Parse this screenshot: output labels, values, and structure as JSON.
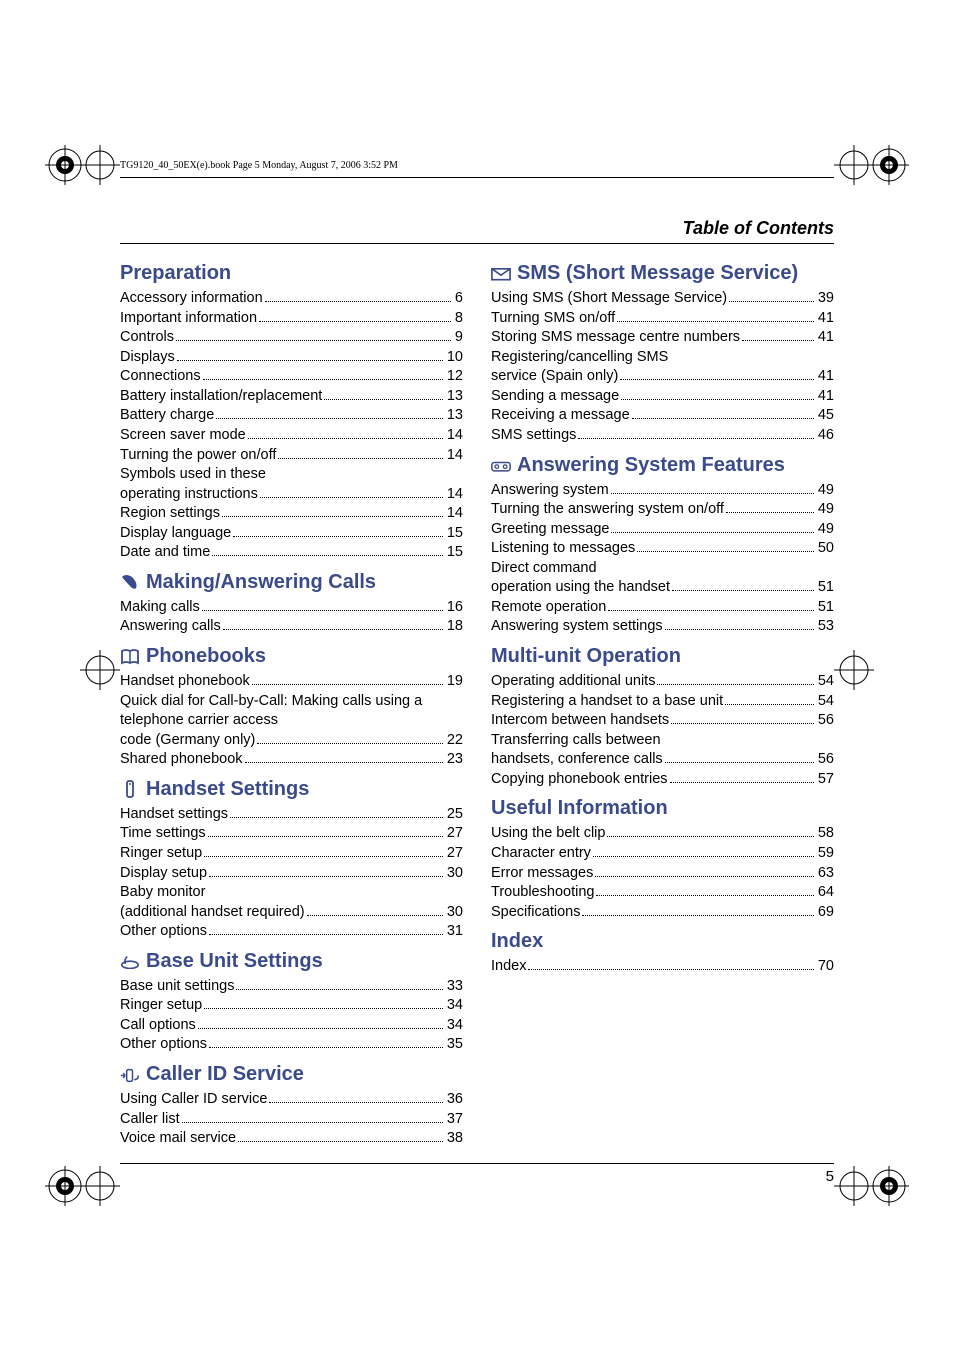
{
  "header_line": "TG9120_40_50EX(e).book  Page 5  Monday, August 7, 2006  3:52 PM",
  "running_head": "Table of Contents",
  "page_number": "5",
  "colors": {
    "heading": "#3a4a8a",
    "text": "#000000",
    "background": "#ffffff"
  },
  "left_sections": [
    {
      "title": "Preparation",
      "icon": null,
      "entries": [
        {
          "label": "Accessory information",
          "page": "6"
        },
        {
          "label": "Important information",
          "page": "8"
        },
        {
          "label": "Controls",
          "page": "9"
        },
        {
          "label": "Displays",
          "page": "10"
        },
        {
          "label": "Connections",
          "page": "12"
        },
        {
          "label": "Battery installation/replacement",
          "page": "13"
        },
        {
          "label": "Battery charge",
          "page": "13"
        },
        {
          "label": "Screen saver mode",
          "page": "14"
        },
        {
          "label": "Turning the power on/off",
          "page": "14"
        },
        {
          "label": "Symbols used in these operating instructions",
          "page": "14"
        },
        {
          "label": "Region settings",
          "page": "14"
        },
        {
          "label": "Display language",
          "page": "15"
        },
        {
          "label": "Date and time",
          "page": "15"
        }
      ]
    },
    {
      "title": "Making/Answering Calls",
      "icon": "phone",
      "entries": [
        {
          "label": "Making calls",
          "page": "16"
        },
        {
          "label": "Answering calls",
          "page": "18"
        }
      ]
    },
    {
      "title": "Phonebooks",
      "icon": "book",
      "entries": [
        {
          "label": "Handset phonebook",
          "page": "19"
        },
        {
          "label": "Quick dial for Call-by-Call: Making calls using a telephone carrier access code (Germany only)",
          "page": "22"
        },
        {
          "label": "Shared phonebook",
          "page": "23"
        }
      ]
    },
    {
      "title": "Handset Settings",
      "icon": "handset",
      "entries": [
        {
          "label": "Handset settings",
          "page": "25"
        },
        {
          "label": "Time settings",
          "page": "27"
        },
        {
          "label": "Ringer setup",
          "page": "27"
        },
        {
          "label": "Display setup",
          "page": "30"
        },
        {
          "label": "Baby monitor (additional handset required)",
          "page": "30"
        },
        {
          "label": "Other options",
          "page": "31"
        }
      ]
    },
    {
      "title": "Base Unit Settings",
      "icon": "base",
      "entries": [
        {
          "label": "Base unit settings",
          "page": "33"
        },
        {
          "label": "Ringer setup",
          "page": "34"
        },
        {
          "label": "Call options",
          "page": "34"
        },
        {
          "label": "Other options",
          "page": "35"
        }
      ]
    },
    {
      "title": "Caller ID Service",
      "icon": "callerid",
      "entries": [
        {
          "label": "Using Caller ID service",
          "page": "36"
        },
        {
          "label": "Caller list",
          "page": "37"
        },
        {
          "label": "Voice mail service",
          "page": "38"
        }
      ]
    }
  ],
  "right_sections": [
    {
      "title": "SMS (Short Message Service)",
      "icon": "envelope",
      "entries": [
        {
          "label": "Using SMS (Short Message Service)",
          "page": "39"
        },
        {
          "label": "Turning SMS on/off",
          "page": "41"
        },
        {
          "label": "Storing SMS message centre numbers",
          "page": "41"
        },
        {
          "label": "Registering/cancelling SMS service (Spain only)",
          "page": "41"
        },
        {
          "label": "Sending a message",
          "page": "41"
        },
        {
          "label": "Receiving a message",
          "page": "45"
        },
        {
          "label": "SMS settings",
          "page": "46"
        }
      ]
    },
    {
      "title": "Answering System Features",
      "icon": "tape",
      "entries": [
        {
          "label": "Answering system",
          "page": "49"
        },
        {
          "label": "Turning the answering system on/off",
          "page": "49"
        },
        {
          "label": "Greeting message",
          "page": "49"
        },
        {
          "label": "Listening to messages",
          "page": "50"
        },
        {
          "label": "Direct command operation using the handset",
          "page": "51"
        },
        {
          "label": "Remote operation",
          "page": "51"
        },
        {
          "label": "Answering system settings",
          "page": "53"
        }
      ]
    },
    {
      "title": "Multi-unit Operation",
      "icon": null,
      "entries": [
        {
          "label": "Operating additional units",
          "page": "54"
        },
        {
          "label": "Registering a handset to a base unit",
          "page": "54"
        },
        {
          "label": "Intercom between handsets",
          "page": "56"
        },
        {
          "label": "Transferring calls between handsets, conference calls",
          "page": "56"
        },
        {
          "label": "Copying phonebook entries",
          "page": "57"
        }
      ]
    },
    {
      "title": "Useful Information",
      "icon": null,
      "entries": [
        {
          "label": "Using the belt clip",
          "page": "58"
        },
        {
          "label": "Character entry",
          "page": "59"
        },
        {
          "label": "Error messages",
          "page": "63"
        },
        {
          "label": "Troubleshooting",
          "page": "64"
        },
        {
          "label": "Specifications",
          "page": "69"
        }
      ]
    },
    {
      "title": "Index",
      "icon": null,
      "entries": [
        {
          "label": "Index",
          "page": " 70"
        }
      ]
    }
  ]
}
